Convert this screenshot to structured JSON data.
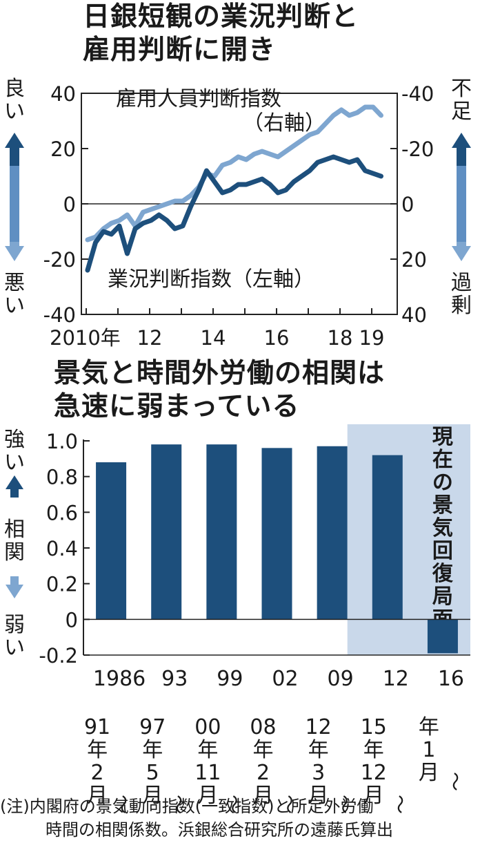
{
  "chart1": {
    "title_line1": "日銀短観の業況判断と",
    "title_line2": "雇用判断に開き",
    "left_top_label": [
      "良",
      "い"
    ],
    "left_bottom_label": [
      "悪",
      "い"
    ],
    "right_top_label": [
      "不",
      "足"
    ],
    "right_bottom_label": [
      "過",
      "剰"
    ],
    "series_label_employment_1": "雇用人員判断指数",
    "series_label_employment_2": "（右軸）",
    "series_label_business": "業況判断指数（左軸）",
    "left_ticks": [
      "40",
      "20",
      "0",
      "-20",
      "-40"
    ],
    "right_ticks": [
      "-40",
      "-20",
      "0",
      "20",
      "40"
    ],
    "x_ticks": [
      "2010年",
      "12",
      "14",
      "16",
      "18",
      "19"
    ],
    "colors": {
      "dark": "#1d4f7c",
      "light": "#7ea6d0"
    }
  },
  "chart2": {
    "title_line1": "景気と時間外労働の相関は",
    "title_line2": "急速に弱まっている",
    "left_top_label": [
      "強",
      "い"
    ],
    "left_mid_label": [
      "相",
      "関"
    ],
    "left_bottom_label": [
      "弱",
      "い"
    ],
    "shade_label": [
      "現",
      "在",
      "の",
      "景",
      "気",
      "回",
      "復",
      "局",
      "面"
    ],
    "y_ticks": [
      "1.0",
      "0.8",
      "0.6",
      "0.4",
      "0.2",
      "0",
      "-0.2"
    ],
    "categories": [
      {
        "top": "1986",
        "col": [
          "91",
          "年",
          "2",
          "月"
        ]
      },
      {
        "top": "93",
        "col": [
          "97",
          "年",
          "5",
          "月"
        ]
      },
      {
        "top": "99",
        "col": [
          "00",
          "年",
          "11",
          "月"
        ]
      },
      {
        "top": "02",
        "col": [
          "08",
          "年",
          "2",
          "月"
        ]
      },
      {
        "top": "09",
        "col": [
          "12",
          "年",
          "3",
          "月"
        ]
      },
      {
        "top": "12",
        "col": [
          "15",
          "年",
          "12",
          "月"
        ]
      },
      {
        "top": "16",
        "col": [
          "年",
          "1",
          "月"
        ]
      }
    ],
    "colors": {
      "bar": "#1d4f7c",
      "shade": "#c9d8ea"
    }
  },
  "note_line1": "(注)内閣府の景気動向指数(一致指数)と所定外労働",
  "note_line2": "時間の相関係数。浜銀総合研究所の遠藤氏算出",
  "chart_data": [
    {
      "type": "line",
      "title": "日銀短観の業況判断と雇用判断に開き",
      "xlabel": "",
      "ylabel": "",
      "x": [
        "2010Q1",
        "2010Q2",
        "2010Q3",
        "2010Q4",
        "2011Q1",
        "2011Q2",
        "2011Q3",
        "2011Q4",
        "2012Q1",
        "2012Q2",
        "2012Q3",
        "2012Q4",
        "2013Q1",
        "2013Q2",
        "2013Q3",
        "2013Q4",
        "2014Q1",
        "2014Q2",
        "2014Q3",
        "2014Q4",
        "2015Q1",
        "2015Q2",
        "2015Q3",
        "2015Q4",
        "2016Q1",
        "2016Q2",
        "2016Q3",
        "2016Q4",
        "2017Q1",
        "2017Q2",
        "2017Q3",
        "2017Q4",
        "2018Q1",
        "2018Q2",
        "2018Q3",
        "2018Q4",
        "2019Q1",
        "2019Q2"
      ],
      "x_tick_labels": [
        "2010年",
        "12",
        "14",
        "16",
        "18",
        "19"
      ],
      "series": [
        {
          "name": "業況判断指数（左軸）",
          "axis": "left",
          "values": [
            -24,
            -14,
            -10,
            -11,
            -8,
            -18,
            -9,
            -7,
            -6,
            -4,
            -6,
            -9,
            -8,
            -1,
            5,
            12,
            8,
            4,
            5,
            7,
            7,
            8,
            9,
            7,
            4,
            5,
            8,
            10,
            12,
            15,
            16,
            17,
            16,
            15,
            16,
            12,
            11,
            10
          ]
        },
        {
          "name": "雇用人員判断指数（右軸）",
          "axis": "right",
          "values": [
            13,
            12,
            9,
            7,
            6,
            4,
            8,
            3,
            2,
            1,
            0,
            -1,
            -1,
            -3,
            -6,
            -11,
            -10,
            -14,
            -15,
            -17,
            -16,
            -18,
            -19,
            -18,
            -17,
            -19,
            -21,
            -23,
            -25,
            -26,
            -29,
            -32,
            -34,
            -32,
            -33,
            -35,
            -35,
            -32
          ]
        }
      ],
      "ylim_left": [
        -40,
        40
      ],
      "ylim_right": [
        40,
        -40
      ],
      "grid": false
    },
    {
      "type": "bar",
      "title": "景気と時間外労働の相関は急速に弱まっている",
      "categories": [
        "1986年～91年2月",
        "93年～97年5月",
        "99年～00年11月",
        "02年～08年2月",
        "09年～12年3月",
        "12年～15年12月",
        "16年1月～"
      ],
      "values": [
        0.88,
        0.98,
        0.98,
        0.96,
        0.97,
        0.92,
        -0.19
      ],
      "ylim": [
        -0.2,
        1.0
      ],
      "highlight_range": [
        "12年～15年12月",
        "16年1月～"
      ],
      "highlight_label": "現在の景気回復局面"
    }
  ]
}
